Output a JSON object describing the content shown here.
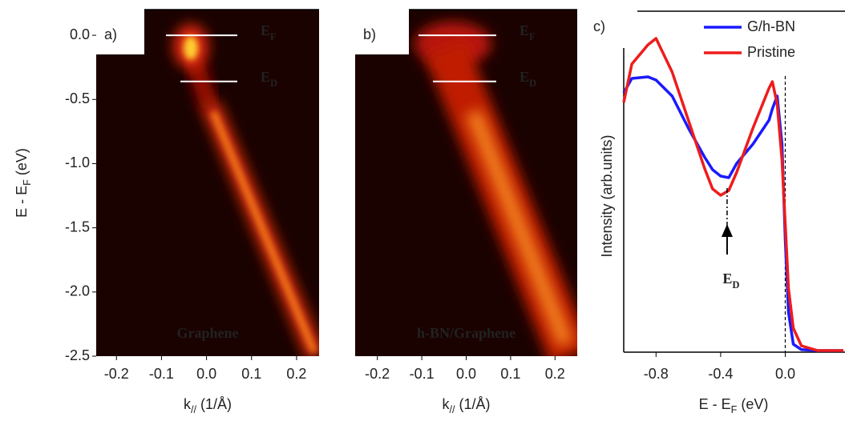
{
  "chart_data": [
    {
      "type": "heatmap",
      "panel_label": "a)",
      "sample_label": "Graphene",
      "xlabel": {
        "text": "k",
        "sub": "//",
        "rest": "  (1/Å)"
      },
      "ylabel": {
        "text": "E - E",
        "sub": "F",
        "rest": " (eV)"
      },
      "xlim": [
        -0.245,
        0.25
      ],
      "ylim": [
        -2.5,
        0.2
      ],
      "xticks": [
        -0.2,
        -0.1,
        {
          "value": 0,
          "label": "0.0"
        },
        0.1,
        0.2
      ],
      "yticks": [
        {
          "value": 0,
          "label": "0.0"
        },
        -0.5,
        {
          "value": -1,
          "label": "-1.0"
        },
        -1.5,
        {
          "value": -2,
          "label": "-2.0"
        },
        -2.5
      ],
      "levels": [
        {
          "text": "E",
          "sub": "F",
          "value": 0
        },
        {
          "text": "E",
          "sub": "D",
          "value": -0.36
        }
      ]
    },
    {
      "type": "heatmap",
      "panel_label": "b)",
      "sample_label": "h-BN/Graphene",
      "xlabel": {
        "text": "k",
        "sub": "//",
        "rest": "  (1/Å)"
      },
      "xlim": [
        -0.25,
        0.25
      ],
      "ylim": [
        -2.5,
        0.2
      ],
      "xticks": [
        -0.2,
        -0.1,
        {
          "value": 0,
          "label": "0.0"
        },
        0.1,
        0.2
      ],
      "levels": [
        {
          "text": "E",
          "sub": "F",
          "value": 0
        },
        {
          "text": "E",
          "sub": "D",
          "value": -0.36
        }
      ]
    },
    {
      "type": "line",
      "panel_label": "c)",
      "xlabel": {
        "text": "E - E",
        "sub": "F",
        "rest": " (eV)"
      },
      "ylabel": "Intensity (arb.units)",
      "xlim": [
        -1.0,
        0.36
      ],
      "ylim": [
        0,
        1
      ],
      "xticks": [
        -0.8,
        -0.4,
        {
          "value": 0,
          "label": "0.0"
        }
      ],
      "x": [
        -1.0,
        -0.95,
        -0.85,
        -0.8,
        -0.7,
        -0.6,
        -0.5,
        -0.45,
        -0.4,
        -0.35,
        -0.3,
        -0.2,
        -0.1,
        -0.08,
        -0.05,
        -0.02,
        0.0,
        0.02,
        0.05,
        0.1,
        0.2,
        0.36
      ],
      "series": [
        {
          "name": "G/h-BN",
          "color": "#1a1aff",
          "values": [
            0.81,
            0.855,
            0.86,
            0.85,
            0.8,
            0.7,
            0.61,
            0.57,
            0.55,
            0.545,
            0.59,
            0.65,
            0.725,
            0.76,
            0.8,
            0.65,
            0.35,
            0.125,
            0.025,
            0.008,
            0.005,
            0.005
          ]
        },
        {
          "name": "Pristine",
          "color": "#ee1c1c",
          "values": [
            0.78,
            0.9,
            0.96,
            0.98,
            0.875,
            0.725,
            0.575,
            0.51,
            0.49,
            0.505,
            0.5625,
            0.7,
            0.825,
            0.845,
            0.775,
            0.6,
            0.4,
            0.2,
            0.075,
            0.02,
            0.005,
            0.005
          ]
        }
      ],
      "fermi_level": 0,
      "dirac_point": {
        "text": "E",
        "sub": "D",
        "value": -0.36
      },
      "legend": "upper right"
    }
  ]
}
